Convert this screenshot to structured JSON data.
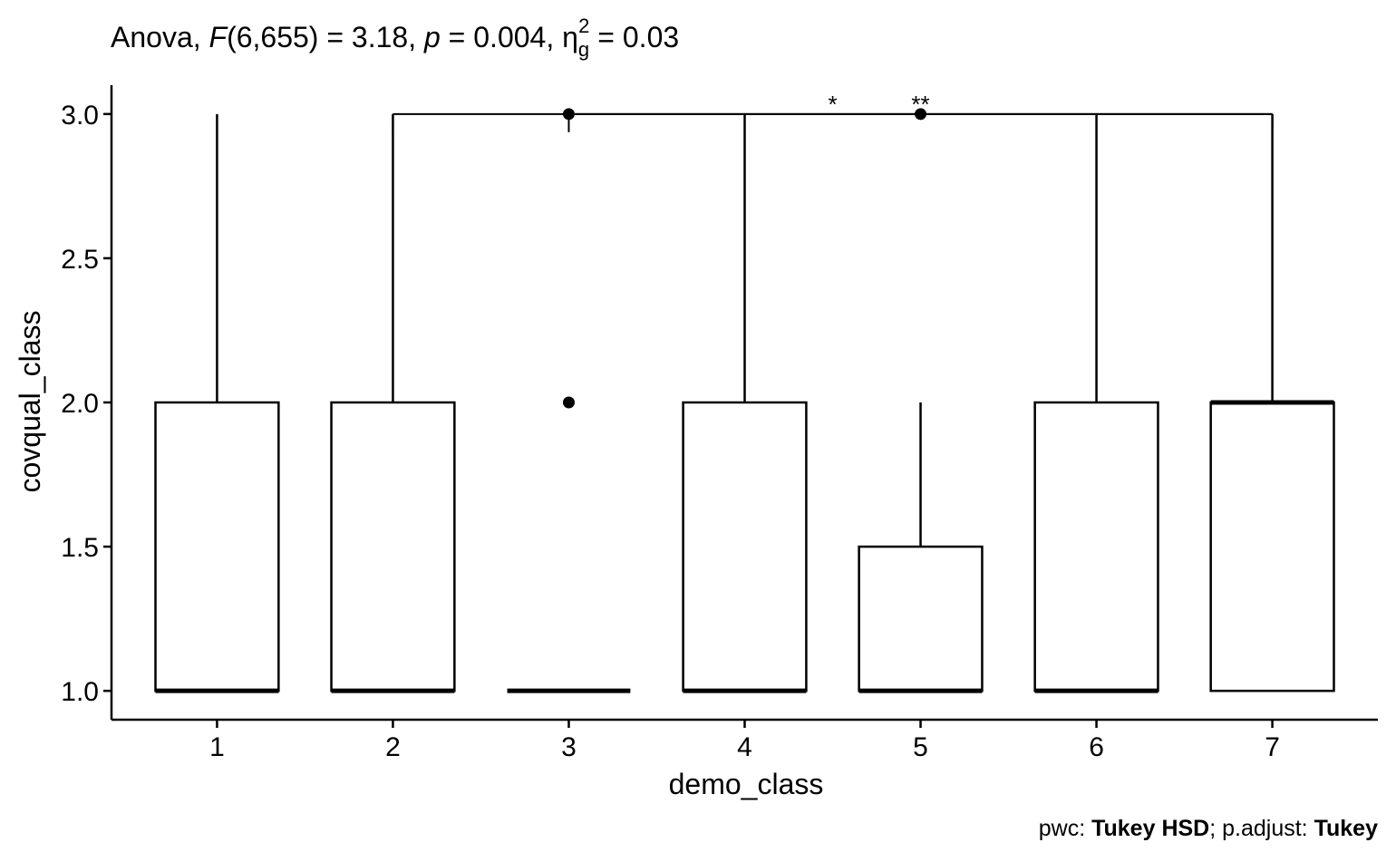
{
  "title": {
    "prefix": "Anova, ",
    "f_symbol": "F",
    "df": "(6,655) = 3.18, ",
    "p_symbol": "p",
    "p_value": " = 0.004, ",
    "eta_symbol": "η",
    "eta_sub": "g",
    "eta_sup": "2",
    "eta_value": " = 0.03"
  },
  "caption": {
    "pwc_label": "pwc: ",
    "pwc_method": "Tukey HSD",
    "adjust_label": "; p.adjust: ",
    "adjust_method": "Tukey"
  },
  "chart_data": {
    "type": "boxplot",
    "xlabel": "demo_class",
    "ylabel": "covqual_class",
    "categories": [
      "1",
      "2",
      "3",
      "4",
      "5",
      "6",
      "7"
    ],
    "ylim": [
      0.9,
      3.1
    ],
    "yticks": [
      1.0,
      1.5,
      2.0,
      2.5,
      3.0
    ],
    "ytick_labels": [
      "1.0",
      "1.5",
      "2.0",
      "2.5",
      "3.0"
    ],
    "boxes": [
      {
        "category": "1",
        "whisker_low": 1.0,
        "q1": 1.0,
        "median": 1.0,
        "q3": 2.0,
        "whisker_high": 3.0,
        "outliers": []
      },
      {
        "category": "2",
        "whisker_low": 1.0,
        "q1": 1.0,
        "median": 1.0,
        "q3": 2.0,
        "whisker_high": 3.0,
        "outliers": []
      },
      {
        "category": "3",
        "whisker_low": 1.0,
        "q1": 1.0,
        "median": 1.0,
        "q3": 1.0,
        "whisker_high": 1.0,
        "outliers": [
          2.0,
          3.0
        ]
      },
      {
        "category": "4",
        "whisker_low": 1.0,
        "q1": 1.0,
        "median": 1.0,
        "q3": 2.0,
        "whisker_high": 3.0,
        "outliers": []
      },
      {
        "category": "5",
        "whisker_low": 1.0,
        "q1": 1.0,
        "median": 1.0,
        "q3": 1.5,
        "whisker_high": 2.0,
        "outliers": [
          3.0
        ]
      },
      {
        "category": "6",
        "whisker_low": 1.0,
        "q1": 1.0,
        "median": 1.0,
        "q3": 2.0,
        "whisker_high": 3.0,
        "outliers": []
      },
      {
        "category": "7",
        "whisker_low": 1.0,
        "q1": 1.0,
        "median": 2.0,
        "q3": 2.0,
        "whisker_high": 3.0,
        "outliers": []
      }
    ],
    "comparisons": [
      {
        "groups": [
          "2",
          "7"
        ],
        "y": 3.0,
        "label": "*"
      },
      {
        "groups": [
          "3",
          "7"
        ],
        "y": 3.0,
        "label": "**"
      }
    ]
  }
}
